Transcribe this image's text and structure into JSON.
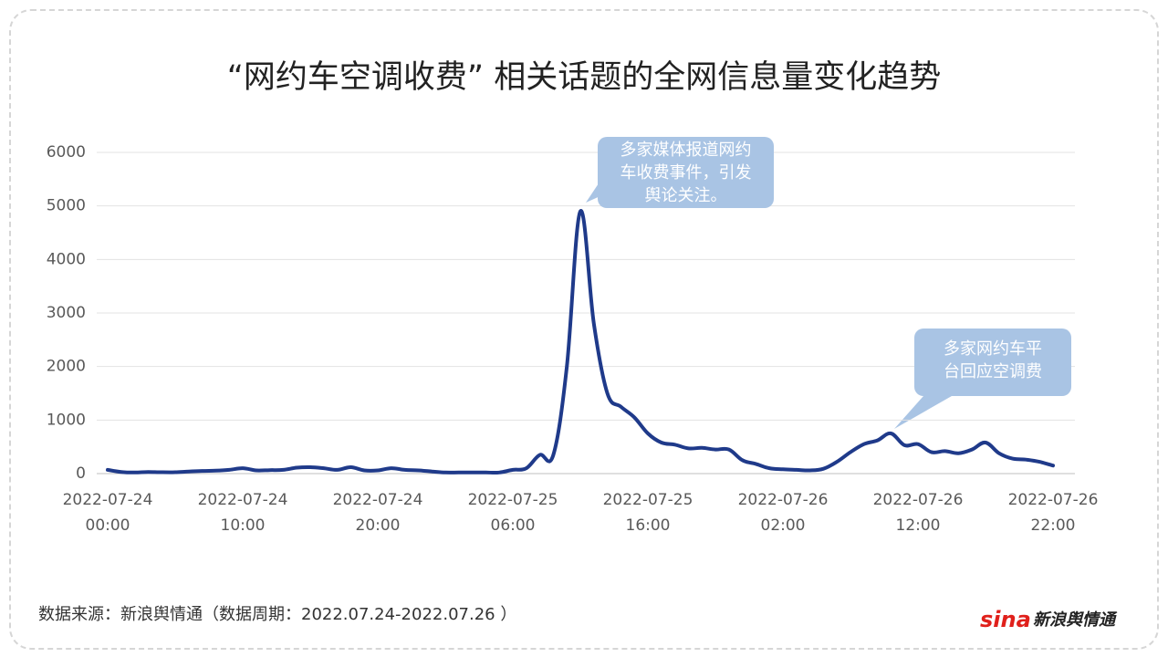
{
  "chart_data": {
    "type": "line",
    "title": "“网约车空调收费” 相关话题的全网信息量变化趋势",
    "categories": [
      "2022-07-24 00:00",
      null,
      null,
      null,
      null,
      null,
      null,
      null,
      null,
      null,
      "2022-07-24 10:00",
      null,
      null,
      null,
      null,
      null,
      null,
      null,
      null,
      null,
      "2022-07-24 20:00",
      null,
      null,
      null,
      null,
      null,
      null,
      null,
      null,
      null,
      "2022-07-25 06:00",
      null,
      null,
      null,
      null,
      null,
      null,
      null,
      null,
      null,
      "2022-07-25 16:00",
      null,
      null,
      null,
      null,
      null,
      null,
      null,
      null,
      null,
      "2022-07-26 02:00",
      null,
      null,
      null,
      null,
      null,
      null,
      null,
      null,
      null,
      "2022-07-26 12:00",
      null,
      null,
      null,
      null,
      null,
      null,
      null,
      null,
      null,
      "2022-07-26 22:00"
    ],
    "values": [
      70,
      30,
      20,
      30,
      25,
      25,
      40,
      50,
      55,
      70,
      100,
      60,
      65,
      70,
      110,
      120,
      100,
      70,
      120,
      60,
      60,
      100,
      70,
      60,
      40,
      20,
      20,
      20,
      20,
      20,
      70,
      100,
      350,
      350,
      2000,
      4900,
      2800,
      1500,
      1250,
      1050,
      750,
      580,
      540,
      470,
      480,
      450,
      450,
      250,
      180,
      100,
      80,
      70,
      60,
      90,
      220,
      400,
      550,
      620,
      750,
      530,
      550,
      400,
      420,
      380,
      450,
      580,
      380,
      280,
      260,
      220,
      150
    ],
    "color": "#1f3a8a",
    "ylim": [
      0,
      6000
    ],
    "yticks": [
      0,
      1000,
      2000,
      3000,
      4000,
      5000,
      6000
    ],
    "grid": true,
    "annotations": [
      "多家媒体报道网约车收费事件，引发舆论关注。",
      "多家网约车平台回应空调费"
    ],
    "source": "数据来源：新浪舆情通（数据周期：2022.07.24-2022.07.26 ）",
    "logo": [
      "sina",
      "新浪舆情通"
    ]
  }
}
